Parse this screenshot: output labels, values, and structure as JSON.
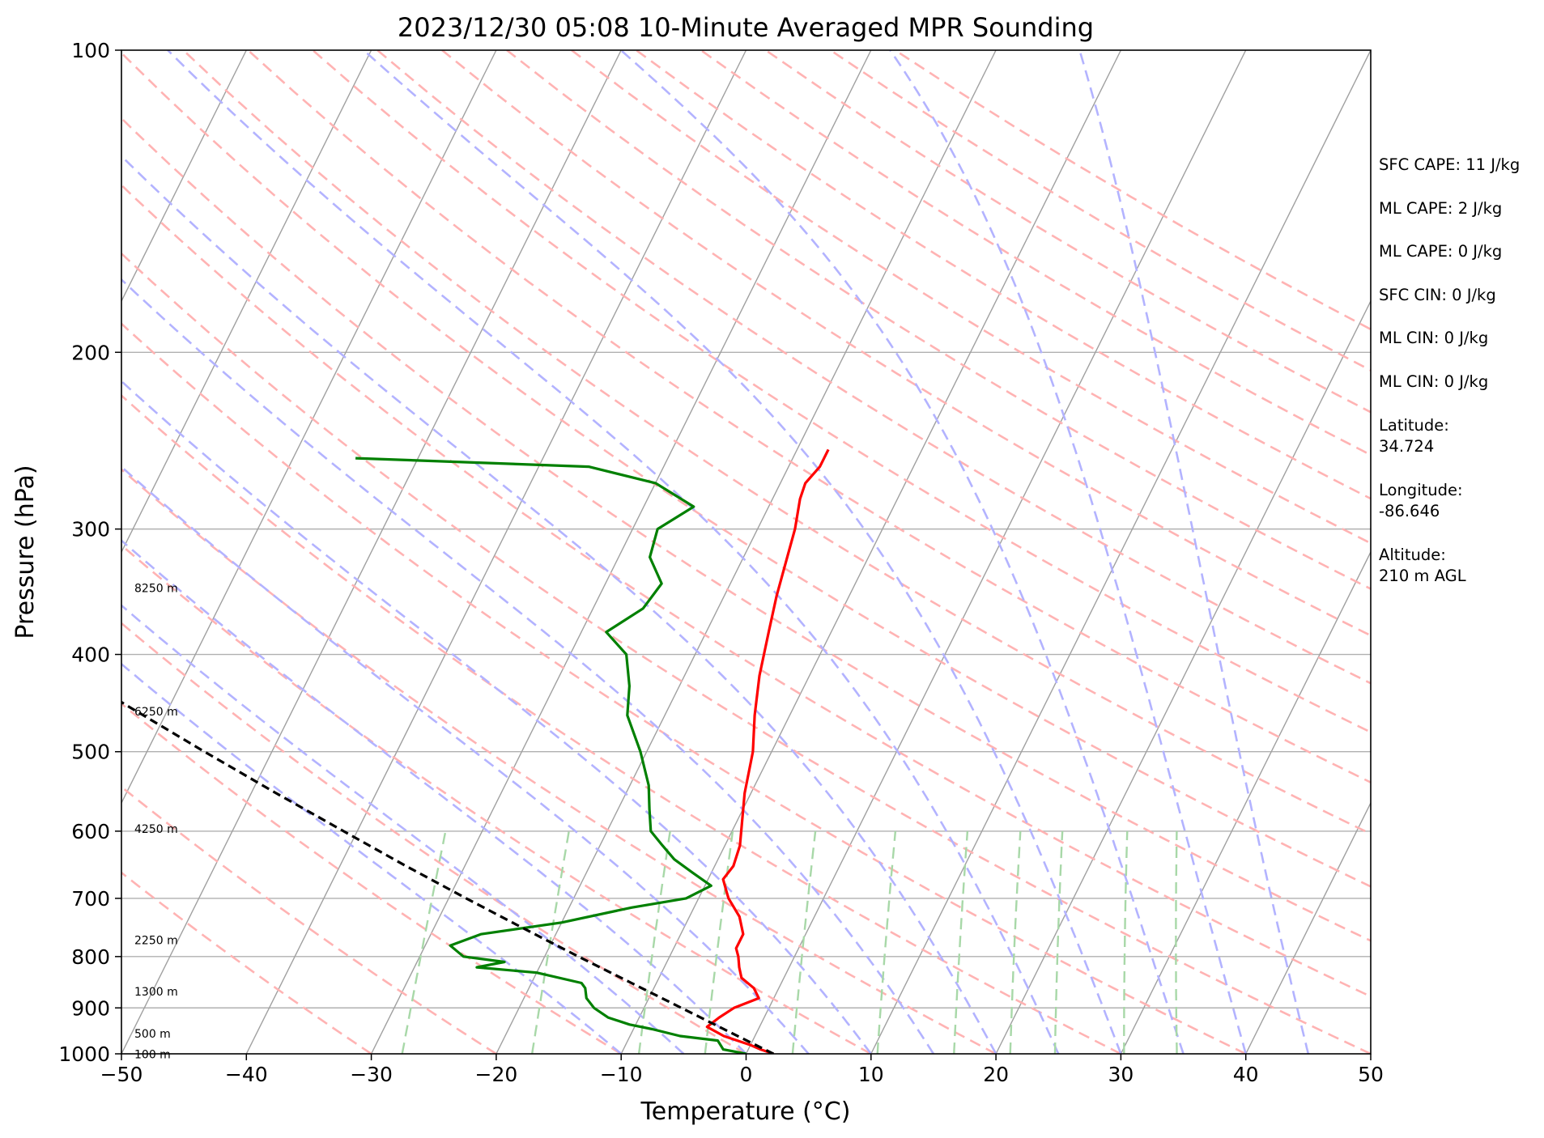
{
  "chart_data": {
    "type": "line",
    "title": "2023/12/30 05:08 10-Minute Averaged MPR Sounding",
    "xlabel": "Temperature (°C)",
    "ylabel": "Pressure (hPa)",
    "xlim": [
      -50,
      50
    ],
    "ylim": [
      1000,
      100
    ],
    "x_scale": "linear",
    "y_scale": "log (inverted)",
    "grid": true,
    "x_ticks": [
      "−50",
      "−40",
      "−30",
      "−20",
      "−10",
      "0",
      "10",
      "20",
      "30",
      "40",
      "50"
    ],
    "y_ticks": [
      "100",
      "200",
      "300",
      "400",
      "500",
      "600",
      "700",
      "800",
      "900",
      "1000"
    ],
    "height_labels": [
      "8250 m",
      "6250 m",
      "4250 m",
      "2250 m",
      "1300 m",
      "500 m",
      "100 m"
    ],
    "colors": {
      "temperature": "#ff0000",
      "dewpoint": "#008000",
      "parcel": "#000000",
      "isotherms": "#a0a0a0",
      "dry_adiabats": "#ffb3b3",
      "moist_adiabats": "#b3b3ff",
      "mixing_ratio": "#a8d8a8"
    },
    "series": [
      {
        "name": "Temperature",
        "points": [
          [
            1000,
            2.2
          ],
          [
            990,
            1.0
          ],
          [
            980,
            0.0
          ],
          [
            960,
            -2.5
          ],
          [
            940,
            -4.2
          ],
          [
            920,
            -3.6
          ],
          [
            900,
            -2.8
          ],
          [
            880,
            -1.2
          ],
          [
            860,
            -2.0
          ],
          [
            840,
            -3.4
          ],
          [
            820,
            -4.0
          ],
          [
            800,
            -4.5
          ],
          [
            785,
            -5.0
          ],
          [
            760,
            -5.0
          ],
          [
            730,
            -6.0
          ],
          [
            700,
            -7.6
          ],
          [
            690,
            -8.0
          ],
          [
            670,
            -8.8
          ],
          [
            650,
            -8.5
          ],
          [
            620,
            -8.8
          ],
          [
            590,
            -9.5
          ],
          [
            550,
            -10.5
          ],
          [
            500,
            -11.5
          ],
          [
            460,
            -12.8
          ],
          [
            420,
            -14.0
          ],
          [
            380,
            -15.0
          ],
          [
            350,
            -15.8
          ],
          [
            320,
            -16.5
          ],
          [
            300,
            -17.0
          ],
          [
            280,
            -17.8
          ],
          [
            270,
            -18.0
          ],
          [
            260,
            -17.5
          ],
          [
            250,
            -17.5
          ]
        ]
      },
      {
        "name": "Dewpoint",
        "points": [
          [
            1000,
            0.0
          ],
          [
            990,
            -2.0
          ],
          [
            970,
            -2.8
          ],
          [
            960,
            -6.0
          ],
          [
            945,
            -8.5
          ],
          [
            935,
            -10.5
          ],
          [
            920,
            -12.5
          ],
          [
            900,
            -14.0
          ],
          [
            880,
            -15.0
          ],
          [
            860,
            -15.5
          ],
          [
            850,
            -16.0
          ],
          [
            830,
            -20.0
          ],
          [
            820,
            -25.0
          ],
          [
            810,
            -23.0
          ],
          [
            800,
            -26.5
          ],
          [
            780,
            -28.0
          ],
          [
            760,
            -26.0
          ],
          [
            740,
            -20.0
          ],
          [
            715,
            -15.0
          ],
          [
            700,
            -11.0
          ],
          [
            680,
            -9.5
          ],
          [
            660,
            -11.5
          ],
          [
            640,
            -13.5
          ],
          [
            620,
            -15.0
          ],
          [
            600,
            -16.5
          ],
          [
            570,
            -17.5
          ],
          [
            540,
            -18.5
          ],
          [
            500,
            -20.5
          ],
          [
            460,
            -23.0
          ],
          [
            430,
            -24.0
          ],
          [
            400,
            -25.5
          ],
          [
            380,
            -28.0
          ],
          [
            360,
            -26.0
          ],
          [
            340,
            -25.5
          ],
          [
            320,
            -27.5
          ],
          [
            300,
            -28.0
          ],
          [
            285,
            -26.0
          ],
          [
            270,
            -30.0
          ],
          [
            260,
            -36.0
          ],
          [
            255,
            -55.0
          ]
        ]
      },
      {
        "name": "Parcel",
        "points": [
          [
            1000,
            2.2
          ],
          [
            950,
            -2.3
          ],
          [
            900,
            -7.0
          ],
          [
            850,
            -12.0
          ],
          [
            800,
            -17.3
          ],
          [
            750,
            -22.8
          ],
          [
            700,
            -28.6
          ],
          [
            650,
            -34.7
          ],
          [
            600,
            -41.1
          ],
          [
            550,
            -48.0
          ],
          [
            500,
            -55.4
          ],
          [
            450,
            -63.4
          ],
          [
            400,
            -72.1
          ],
          [
            350,
            -81.6
          ],
          [
            300,
            -92.0
          ],
          [
            270,
            -98.8
          ]
        ]
      }
    ]
  },
  "info": {
    "sfc_cape": "SFC CAPE: 11 J/kg",
    "ml_cape_1": "ML CAPE: 2 J/kg",
    "ml_cape_2": "ML CAPE: 0 J/kg",
    "sfc_cin": "SFC CIN: 0 J/kg",
    "ml_cin_1": "ML CIN: 0 J/kg",
    "ml_cin_2": "ML CIN: 0 J/kg",
    "latitude_label": "Latitude:",
    "latitude_value": "34.724",
    "longitude_label": "Longitude:",
    "longitude_value": "-86.646",
    "altitude_label": "Altitude:",
    "altitude_value": "210 m AGL"
  }
}
